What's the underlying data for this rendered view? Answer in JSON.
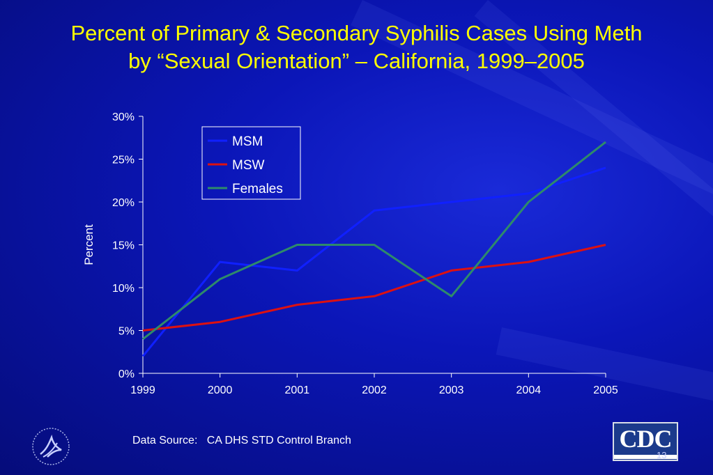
{
  "slide": {
    "title_line1": "Percent of Primary & Secondary Syphilis Cases Using Meth",
    "title_line2": "by “Sexual Orientation” – California, 1999–2005",
    "source": "Data Source:   CA DHS STD Control Branch",
    "slide_number": "13",
    "logo_text": "CDC",
    "colors": {
      "title": "#ffff00",
      "background": "#0b16b8",
      "text": "#ffffff"
    }
  },
  "chart_data": {
    "type": "line",
    "title": "",
    "xlabel": "",
    "ylabel": "Percent",
    "categories": [
      "1999",
      "2000",
      "2001",
      "2002",
      "2003",
      "2004",
      "2005"
    ],
    "ylim": [
      0,
      30
    ],
    "yticks": [
      "0%",
      "5%",
      "10%",
      "15%",
      "20%",
      "25%",
      "30%"
    ],
    "grid": false,
    "legend_position": "top-left inside plot",
    "series": [
      {
        "name": "MSM",
        "color": "#1020ff",
        "values": [
          2,
          13,
          12,
          19,
          20,
          21,
          24
        ]
      },
      {
        "name": "MSW",
        "color": "#dd1111",
        "values": [
          5,
          6,
          8,
          9,
          12,
          13,
          15
        ]
      },
      {
        "name": "Females",
        "color": "#2e8b6a",
        "values": [
          4,
          11,
          15,
          15,
          9,
          20,
          27
        ]
      }
    ]
  }
}
